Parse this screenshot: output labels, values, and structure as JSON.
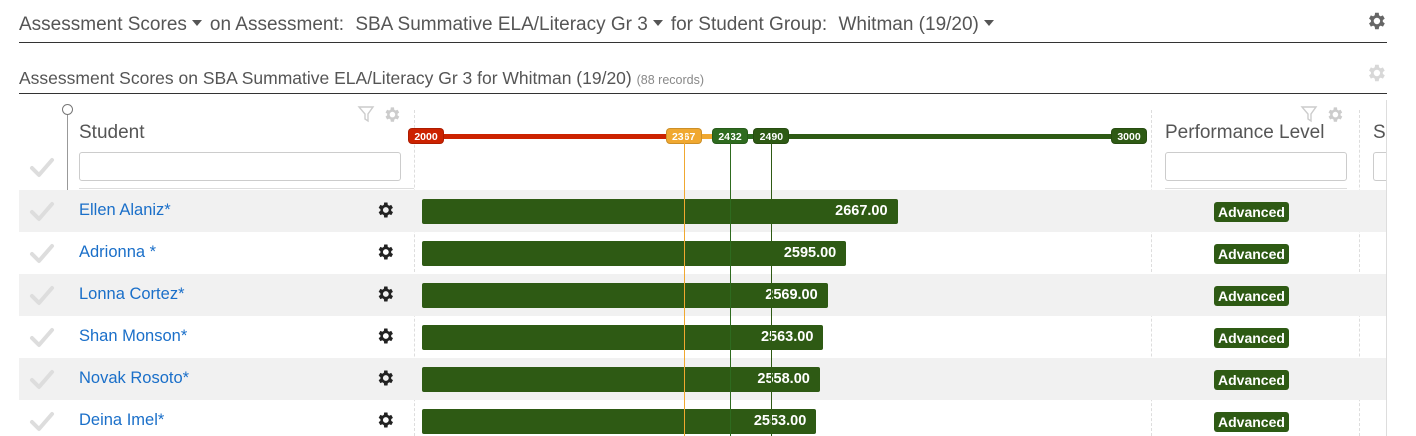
{
  "top_bar": {
    "view_selector": "Assessment Scores",
    "on_assessment_label": "on Assessment:",
    "assessment_selector": "SBA Summative ELA/Literacy Gr 3",
    "student_group_label": "for Student Group:",
    "student_group_selector": "Whitman (19/20)"
  },
  "section": {
    "title": "Assessment Scores on SBA Summative ELA/Literacy Gr 3 for Whitman (19/20)",
    "records": "(88 records)"
  },
  "columns": {
    "student": "Student",
    "performance_level": "Performance Level",
    "next_column": "Sc"
  },
  "scale": {
    "min_label": "2000",
    "cut1_label": "2367",
    "cut2_label": "2432",
    "cut3_label": "2490",
    "max_label": "3000",
    "min": 2000,
    "max": 3000,
    "cuts": [
      2367,
      2432,
      2490
    ]
  },
  "colors": {
    "below": "#cc2200",
    "near": "#f0a830",
    "met": "#2e6b1f",
    "advanced": "#2e5a14"
  },
  "rows": [
    {
      "name": "Ellen Alaniz*",
      "score": 2667,
      "score_label": "2667.00",
      "level": "Advanced"
    },
    {
      "name": "Adrionna *",
      "score": 2595,
      "score_label": "2595.00",
      "level": "Advanced"
    },
    {
      "name": "Lonna Cortez*",
      "score": 2569,
      "score_label": "2569.00",
      "level": "Advanced"
    },
    {
      "name": "Shan Monson*",
      "score": 2563,
      "score_label": "2563.00",
      "level": "Advanced"
    },
    {
      "name": "Novak Rosoto*",
      "score": 2558,
      "score_label": "2558.00",
      "level": "Advanced"
    },
    {
      "name": "Deina Imel*",
      "score": 2553,
      "score_label": "2553.00",
      "level": "Advanced"
    }
  ]
}
